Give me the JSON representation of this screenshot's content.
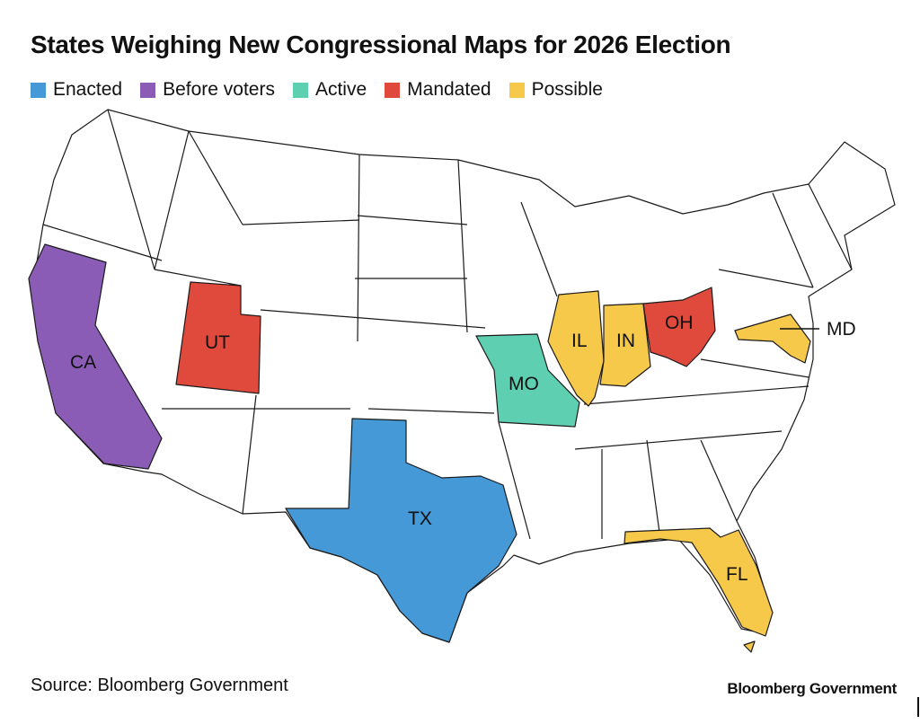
{
  "title": "States Weighing New Congressional Maps for 2026 Election",
  "legend": [
    {
      "label": "Enacted",
      "color": "#4499d6"
    },
    {
      "label": "Before voters",
      "color": "#8a5cb6"
    },
    {
      "label": "Active",
      "color": "#5fcfb2"
    },
    {
      "label": "Mandated",
      "color": "#e04a3c"
    },
    {
      "label": "Possible",
      "color": "#f6c94a"
    }
  ],
  "states": {
    "ca": {
      "label": "CA",
      "status": "Before voters"
    },
    "ut": {
      "label": "UT",
      "status": "Mandated"
    },
    "tx": {
      "label": "TX",
      "status": "Enacted"
    },
    "mo": {
      "label": "MO",
      "status": "Active"
    },
    "il": {
      "label": "IL",
      "status": "Possible"
    },
    "in": {
      "label": "IN",
      "status": "Possible"
    },
    "oh": {
      "label": "OH",
      "status": "Mandated"
    },
    "md": {
      "label": "MD",
      "status": "Possible"
    },
    "fl": {
      "label": "FL",
      "status": "Possible"
    }
  },
  "default_fill": "#ffffff",
  "source": "Source: Bloomberg Government",
  "brand": "Bloomberg Government"
}
